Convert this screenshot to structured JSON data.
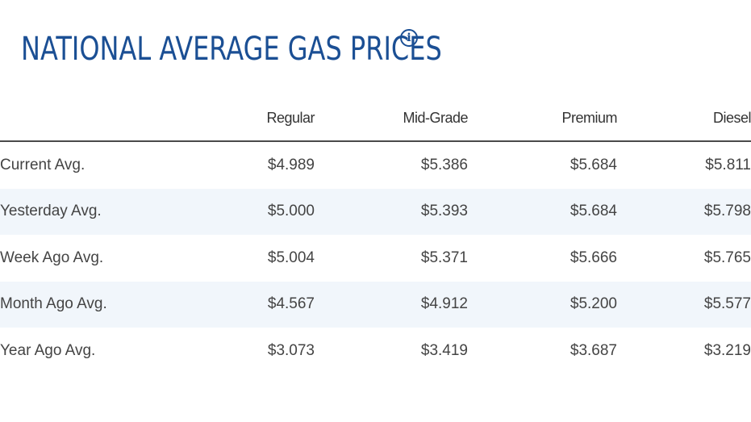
{
  "header": {
    "title": "NATIONAL AVERAGE GAS PRICES",
    "info_icon": "info-circle-icon",
    "accent_color": "#1b4f94"
  },
  "table": {
    "columns": [
      "",
      "Regular",
      "Mid-Grade",
      "Premium",
      "Diesel"
    ],
    "rows": [
      {
        "label": "Current Avg.",
        "regular": "$4.989",
        "mid_grade": "$5.386",
        "premium": "$5.684",
        "diesel": "$5.811"
      },
      {
        "label": "Yesterday Avg.",
        "regular": "$5.000",
        "mid_grade": "$5.393",
        "premium": "$5.684",
        "diesel": "$5.798"
      },
      {
        "label": "Week Ago Avg.",
        "regular": "$5.004",
        "mid_grade": "$5.371",
        "premium": "$5.666",
        "diesel": "$5.765"
      },
      {
        "label": "Month Ago Avg.",
        "regular": "$4.567",
        "mid_grade": "$4.912",
        "premium": "$5.200",
        "diesel": "$5.577"
      },
      {
        "label": "Year Ago Avg.",
        "regular": "$3.073",
        "mid_grade": "$3.419",
        "premium": "$3.687",
        "diesel": "$3.219"
      }
    ],
    "stripe_color": "#f1f6fb"
  }
}
